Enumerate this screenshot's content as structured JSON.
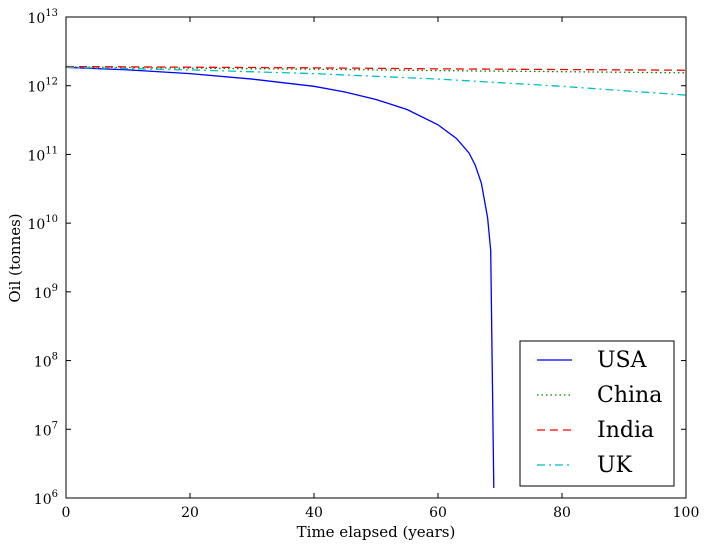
{
  "chart_data": {
    "type": "line",
    "title": "",
    "xlabel": "Time elapsed (years)",
    "ylabel": "Oil (tonnes)",
    "x_scale": "linear",
    "y_scale": "log",
    "xlim": [
      0,
      100
    ],
    "ylim": [
      1000000,
      10000000000000
    ],
    "x_ticks": [
      "0",
      "20",
      "40",
      "60",
      "80",
      "100"
    ],
    "y_tick_exponents": [
      "6",
      "7",
      "8",
      "9",
      "10",
      "11",
      "12",
      "13"
    ],
    "y_tick_base": "10",
    "grid": false,
    "legend_position": "lower-right",
    "series": [
      {
        "name": "USA",
        "color": "#0000ff",
        "dash": "solid",
        "points": [
          [
            0,
            1850000000000.0
          ],
          [
            10,
            1700000000000.0
          ],
          [
            20,
            1500000000000.0
          ],
          [
            30,
            1250000000000.0
          ],
          [
            40,
            980000000000.0
          ],
          [
            45,
            810000000000.0
          ],
          [
            50,
            630000000000.0
          ],
          [
            55,
            450000000000.0
          ],
          [
            60,
            270000000000.0
          ],
          [
            63,
            170000000000.0
          ],
          [
            65,
            105000000000.0
          ],
          [
            66,
            70000000000.0
          ],
          [
            67,
            38000000000.0
          ],
          [
            68,
            12000000000.0
          ],
          [
            68.5,
            4000000000.0
          ],
          [
            69,
            1400000.0
          ]
        ]
      },
      {
        "name": "China",
        "color": "#008000",
        "dash": "dotted",
        "points": [
          [
            0,
            1880000000000.0
          ],
          [
            20,
            1800000000000.0
          ],
          [
            40,
            1740000000000.0
          ],
          [
            60,
            1660000000000.0
          ],
          [
            80,
            1600000000000.0
          ],
          [
            100,
            1540000000000.0
          ]
        ]
      },
      {
        "name": "India",
        "color": "#ff0000",
        "dash": "dashed",
        "points": [
          [
            0,
            1900000000000.0
          ],
          [
            20,
            1860000000000.0
          ],
          [
            40,
            1820000000000.0
          ],
          [
            60,
            1760000000000.0
          ],
          [
            80,
            1720000000000.0
          ],
          [
            100,
            1680000000000.0
          ]
        ]
      },
      {
        "name": "UK",
        "color": "#00bfbf",
        "dash": "dashdot",
        "points": [
          [
            0,
            1850000000000.0
          ],
          [
            20,
            1700000000000.0
          ],
          [
            40,
            1500000000000.0
          ],
          [
            60,
            1250000000000.0
          ],
          [
            80,
            980000000000.0
          ],
          [
            100,
            730000000000.0
          ]
        ]
      }
    ]
  }
}
